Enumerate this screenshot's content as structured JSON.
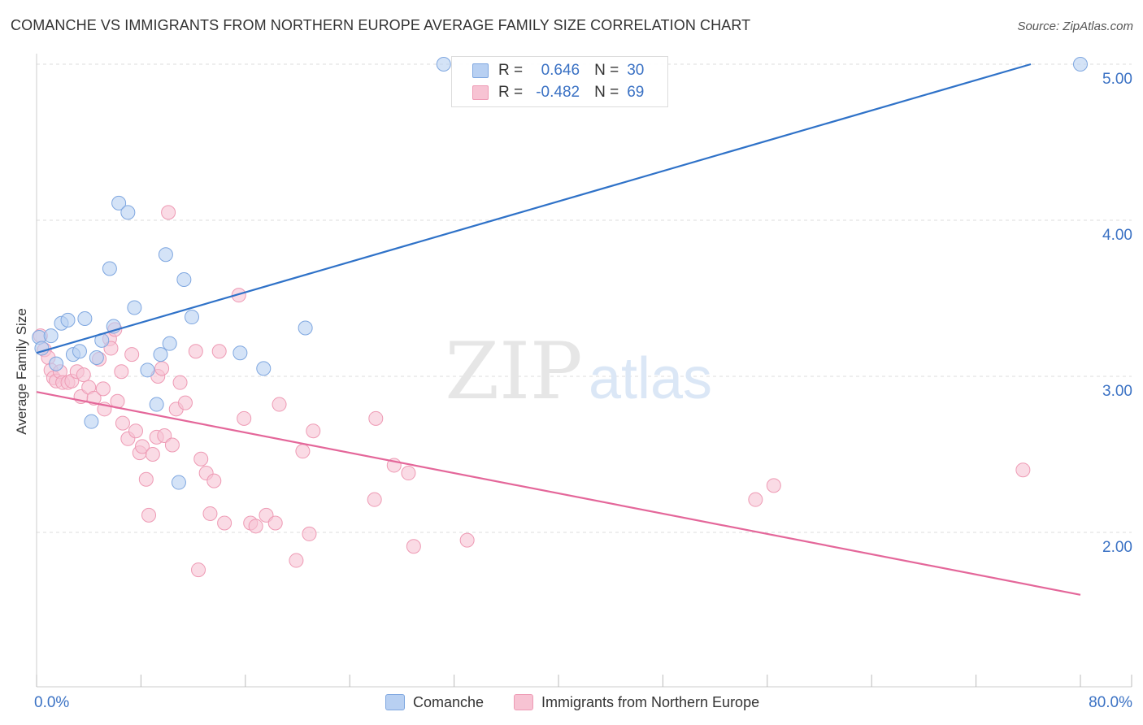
{
  "title": "COMANCHE VS IMMIGRANTS FROM NORTHERN EUROPE AVERAGE FAMILY SIZE CORRELATION CHART",
  "source": "Source: ZipAtlas.com",
  "watermark": {
    "zip": "ZIP",
    "atlas": "atlas"
  },
  "legend": {
    "r_label": "R =",
    "n_label": "N =",
    "series1": {
      "r": "0.646",
      "n": "30"
    },
    "series2": {
      "r": "-0.482",
      "n": "69"
    }
  },
  "chart_data": {
    "type": "scatter",
    "title": "COMANCHE VS IMMIGRANTS FROM NORTHERN EUROPE AVERAGE FAMILY SIZE CORRELATION CHART",
    "xlabel": "",
    "ylabel": "Average Family Size",
    "xlim": [
      0,
      80
    ],
    "ylim": [
      1.0,
      5.1
    ],
    "x_tick_labels": [
      "0.0%",
      "80.0%"
    ],
    "y_ticks": [
      2.0,
      3.0,
      4.0,
      5.0
    ],
    "y_tick_labels": [
      "2.00",
      "3.00",
      "4.00",
      "5.00"
    ],
    "grid": true,
    "legend_position": "top-center",
    "colors": {
      "comanche_fill": "#b8d0f2",
      "comanche_stroke": "#7fa7e0",
      "comanche_line": "#2f72c8",
      "immigrants_fill": "#f7c3d3",
      "immigrants_stroke": "#ee9ab4",
      "immigrants_line": "#e4679a",
      "axis_text": "#3b72c4",
      "grid": "#dddddd"
    },
    "series": [
      {
        "name": "Comanche",
        "trend": {
          "x": [
            0,
            76.2
          ],
          "y": [
            3.15,
            5.0
          ]
        },
        "points": [
          {
            "x": 0.2,
            "y": 3.25
          },
          {
            "x": 0.4,
            "y": 3.18
          },
          {
            "x": 1.1,
            "y": 3.26
          },
          {
            "x": 1.5,
            "y": 3.08
          },
          {
            "x": 1.9,
            "y": 3.34
          },
          {
            "x": 2.4,
            "y": 3.36
          },
          {
            "x": 2.8,
            "y": 3.14
          },
          {
            "x": 3.3,
            "y": 3.16
          },
          {
            "x": 3.7,
            "y": 3.37
          },
          {
            "x": 4.2,
            "y": 2.71
          },
          {
            "x": 4.6,
            "y": 3.12
          },
          {
            "x": 5.0,
            "y": 3.23
          },
          {
            "x": 5.6,
            "y": 3.69
          },
          {
            "x": 5.9,
            "y": 3.32
          },
          {
            "x": 6.3,
            "y": 4.11
          },
          {
            "x": 7.0,
            "y": 4.05
          },
          {
            "x": 7.5,
            "y": 3.44
          },
          {
            "x": 9.5,
            "y": 3.14
          },
          {
            "x": 10.2,
            "y": 3.21
          },
          {
            "x": 9.9,
            "y": 3.78
          },
          {
            "x": 11.3,
            "y": 3.62
          },
          {
            "x": 11.9,
            "y": 3.38
          },
          {
            "x": 8.5,
            "y": 3.04
          },
          {
            "x": 9.2,
            "y": 2.82
          },
          {
            "x": 10.9,
            "y": 2.32
          },
          {
            "x": 15.6,
            "y": 3.15
          },
          {
            "x": 17.4,
            "y": 3.05
          },
          {
            "x": 20.6,
            "y": 3.31
          },
          {
            "x": 31.2,
            "y": 5.0
          },
          {
            "x": 80.0,
            "y": 5.0
          }
        ]
      },
      {
        "name": "Immigrants from Northern Europe",
        "trend": {
          "x": [
            0,
            80
          ],
          "y": [
            2.9,
            1.6
          ]
        },
        "points": [
          {
            "x": 0.3,
            "y": 3.26
          },
          {
            "x": 0.6,
            "y": 3.17
          },
          {
            "x": 0.9,
            "y": 3.12
          },
          {
            "x": 1.1,
            "y": 3.04
          },
          {
            "x": 1.3,
            "y": 2.99
          },
          {
            "x": 1.5,
            "y": 2.97
          },
          {
            "x": 1.8,
            "y": 3.03
          },
          {
            "x": 2.0,
            "y": 2.96
          },
          {
            "x": 2.4,
            "y": 2.96
          },
          {
            "x": 2.7,
            "y": 2.97
          },
          {
            "x": 3.1,
            "y": 3.03
          },
          {
            "x": 3.4,
            "y": 2.87
          },
          {
            "x": 3.6,
            "y": 3.01
          },
          {
            "x": 4.0,
            "y": 2.93
          },
          {
            "x": 4.4,
            "y": 2.86
          },
          {
            "x": 4.8,
            "y": 3.11
          },
          {
            "x": 5.1,
            "y": 2.92
          },
          {
            "x": 5.2,
            "y": 2.79
          },
          {
            "x": 5.6,
            "y": 3.24
          },
          {
            "x": 5.7,
            "y": 3.18
          },
          {
            "x": 6.0,
            "y": 3.3
          },
          {
            "x": 6.2,
            "y": 2.84
          },
          {
            "x": 6.5,
            "y": 3.03
          },
          {
            "x": 6.6,
            "y": 2.7
          },
          {
            "x": 7.0,
            "y": 2.6
          },
          {
            "x": 7.3,
            "y": 3.14
          },
          {
            "x": 7.6,
            "y": 2.65
          },
          {
            "x": 7.9,
            "y": 2.51
          },
          {
            "x": 8.1,
            "y": 2.55
          },
          {
            "x": 8.4,
            "y": 2.34
          },
          {
            "x": 8.6,
            "y": 2.11
          },
          {
            "x": 8.9,
            "y": 2.5
          },
          {
            "x": 9.2,
            "y": 2.61
          },
          {
            "x": 9.3,
            "y": 3.0
          },
          {
            "x": 9.6,
            "y": 3.05
          },
          {
            "x": 9.8,
            "y": 2.62
          },
          {
            "x": 10.1,
            "y": 4.05
          },
          {
            "x": 10.4,
            "y": 2.56
          },
          {
            "x": 10.7,
            "y": 2.79
          },
          {
            "x": 11.0,
            "y": 2.96
          },
          {
            "x": 11.4,
            "y": 2.83
          },
          {
            "x": 12.2,
            "y": 3.16
          },
          {
            "x": 12.4,
            "y": 1.76
          },
          {
            "x": 12.6,
            "y": 2.47
          },
          {
            "x": 13.0,
            "y": 2.38
          },
          {
            "x": 13.3,
            "y": 2.12
          },
          {
            "x": 13.6,
            "y": 2.33
          },
          {
            "x": 14.0,
            "y": 3.16
          },
          {
            "x": 14.4,
            "y": 2.06
          },
          {
            "x": 15.5,
            "y": 3.52
          },
          {
            "x": 15.9,
            "y": 2.73
          },
          {
            "x": 16.4,
            "y": 2.06
          },
          {
            "x": 16.8,
            "y": 2.04
          },
          {
            "x": 17.6,
            "y": 2.11
          },
          {
            "x": 18.3,
            "y": 2.06
          },
          {
            "x": 18.6,
            "y": 2.82
          },
          {
            "x": 19.9,
            "y": 1.82
          },
          {
            "x": 20.4,
            "y": 2.52
          },
          {
            "x": 20.9,
            "y": 1.99
          },
          {
            "x": 21.2,
            "y": 2.65
          },
          {
            "x": 26.0,
            "y": 2.73
          },
          {
            "x": 25.9,
            "y": 2.21
          },
          {
            "x": 27.4,
            "y": 2.43
          },
          {
            "x": 28.5,
            "y": 2.38
          },
          {
            "x": 28.9,
            "y": 1.91
          },
          {
            "x": 33.0,
            "y": 1.95
          },
          {
            "x": 55.1,
            "y": 2.21
          },
          {
            "x": 56.5,
            "y": 2.3
          },
          {
            "x": 75.6,
            "y": 2.4
          }
        ]
      }
    ]
  }
}
